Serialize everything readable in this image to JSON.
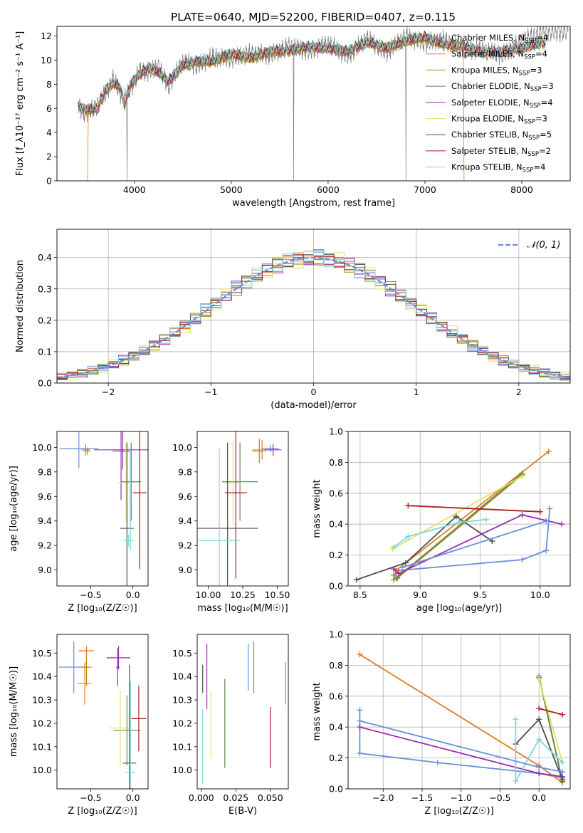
{
  "figure": {
    "title": "PLATE=0640, MJD=52200, FIBERID=0407, z=0.115"
  },
  "colors": {
    "models": [
      "#6A8DDB",
      "#E07B22",
      "#B8860B",
      "#5E8C54",
      "#9A2DB0",
      "#E2E26A",
      "#4D4D4D",
      "#AA1E1E",
      "#7ED6E0"
    ],
    "data": "#808080",
    "normal": "#6A8DDB",
    "grid": "#b0b0b0"
  },
  "chart_data": [
    {
      "id": "spectrum",
      "type": "line",
      "xlabel": "wavelength [Angstrom, rest frame]",
      "ylabel": "Flux [f_λ10⁻¹⁷ erg cm⁻² s⁻¹ A⁻¹]",
      "xlim": [
        3200,
        8500
      ],
      "ylim": [
        0,
        12.8
      ],
      "xticks": [
        4000,
        5000,
        6000,
        7000,
        8000
      ],
      "yticks": [
        0,
        2,
        4,
        6,
        8,
        10,
        12
      ],
      "grid": false,
      "legend_position": "top-right",
      "x": [
        3420,
        3480,
        3550,
        3620,
        3700,
        3780,
        3850,
        3900,
        3960,
        4050,
        4150,
        4250,
        4350,
        4500,
        4650,
        4800,
        5000,
        5200,
        5400,
        5600,
        5800,
        6000,
        6200,
        6400,
        6600,
        6800,
        7000,
        7200,
        7400,
        7600,
        7800,
        8000,
        8200
      ],
      "model_flux": [
        6.2,
        5.9,
        5.9,
        6.0,
        7.5,
        8.1,
        7.8,
        6.3,
        8.0,
        8.8,
        9.4,
        9.0,
        8.2,
        9.6,
        9.9,
        9.9,
        10.5,
        10.2,
        10.7,
        10.8,
        11.1,
        11.0,
        10.7,
        11.5,
        11.0,
        11.6,
        11.9,
        11.3,
        11.2,
        10.6,
        10.7,
        11.0,
        11.4
      ],
      "data_flux": [
        6.1,
        5.6,
        5.8,
        6.3,
        7.2,
        8.5,
        7.3,
        6.8,
        7.6,
        9.1,
        9.0,
        9.5,
        7.8,
        9.9,
        9.5,
        10.3,
        10.1,
        10.6,
        10.4,
        11.2,
        10.7,
        11.4,
        10.3,
        11.8,
        10.6,
        12.0,
        11.4,
        11.7,
        10.8,
        10.9,
        10.4,
        11.6,
        12.3
      ],
      "legend": [
        {
          "prefix": "Chabrier MILES, N",
          "sub": "SSP",
          "suffix": "=4"
        },
        {
          "prefix": "Salpeter MILES, N",
          "sub": "SSP",
          "suffix": "=4"
        },
        {
          "prefix": "Kroupa MILES, N",
          "sub": "SSP",
          "suffix": "=3"
        },
        {
          "prefix": "Chabrier ELODIE, N",
          "sub": "SSP",
          "suffix": "=3"
        },
        {
          "prefix": "Salpeter ELODIE, N",
          "sub": "SSP",
          "suffix": "=4"
        },
        {
          "prefix": "Kroupa ELODIE, N",
          "sub": "SSP",
          "suffix": "=3"
        },
        {
          "prefix": "Chabrier STELIB, N",
          "sub": "SSP",
          "suffix": "=5"
        },
        {
          "prefix": "Salpeter STELIB, N",
          "sub": "SSP",
          "suffix": "=2"
        },
        {
          "prefix": "Kroupa STELIB, N",
          "sub": "SSP",
          "suffix": "=4"
        }
      ]
    },
    {
      "id": "residuals",
      "type": "histogram",
      "xlabel": "(data-model)/error",
      "ylabel": "Normed distribution",
      "xlim": [
        -2.5,
        2.5
      ],
      "ylim": [
        0,
        0.49
      ],
      "xticks": [
        -2,
        -1,
        0,
        1,
        2
      ],
      "yticks": [
        0.0,
        0.1,
        0.2,
        0.3,
        0.4
      ],
      "grid": true,
      "legend_position": "top-right",
      "legend_label": "𝒩(0, 1)",
      "bin_width": 0.1,
      "bin_start": -2.5,
      "offsets": [
        0.0,
        0.012,
        -0.01,
        0.006,
        0.016,
        -0.014,
        0.009,
        -0.004,
        0.013
      ],
      "wiggle_amp": [
        0.028,
        0.022,
        0.03,
        0.025,
        0.033,
        0.036,
        0.024,
        0.02,
        0.031
      ]
    },
    {
      "id": "age-vs-Z",
      "type": "errorbar",
      "xlabel": "Z [log₁₀(Z/Z☉)]",
      "ylabel": "age  [log₁₀(age/yr)]",
      "xlim": [
        -0.9,
        0.18
      ],
      "ylim": [
        8.87,
        10.13
      ],
      "xticks": [
        -0.5,
        0.0
      ],
      "yticks": [
        9.0,
        9.2,
        9.4,
        9.6,
        9.8,
        10.0
      ],
      "grid": false,
      "points": [
        {
          "model": 0,
          "x": -0.64,
          "y": 9.99,
          "xerr": 0.23,
          "yerr": 0.16
        },
        {
          "model": 1,
          "x": -0.56,
          "y": 9.98,
          "xerr": 0.05,
          "yerr": 0.05
        },
        {
          "model": 2,
          "x": -0.54,
          "y": 9.97,
          "xerr": 0.04,
          "yerr": 0.03
        },
        {
          "model": 3,
          "x": -0.02,
          "y": 9.72,
          "xerr": 0.12,
          "yerr": 0.32
        },
        {
          "model": 4,
          "x": -0.12,
          "y": 9.98,
          "xerr": 0.34,
          "yerr": 0.16
        },
        {
          "model": 4,
          "x": -0.14,
          "y": 9.97,
          "xerr": 0.1,
          "yerr": 0.4
        },
        {
          "model": 5,
          "x": -0.08,
          "y": 9.71,
          "xerr": 0.1,
          "yerr": 0.32
        },
        {
          "model": 6,
          "x": -0.07,
          "y": 9.34,
          "xerr": 0.08,
          "yerr": 0.7
        },
        {
          "model": 7,
          "x": 0.08,
          "y": 9.63,
          "xerr": 0.08,
          "yerr": 0.62
        },
        {
          "model": 8,
          "x": -0.05,
          "y": 9.24,
          "xerr": 0.06,
          "yerr": 0.05
        },
        {
          "model": 8,
          "x": -0.03,
          "y": 9.58,
          "xerr": 0.02,
          "yerr": 0.42
        }
      ]
    },
    {
      "id": "age-vs-mass",
      "type": "errorbar",
      "xlabel": "mass [log₁₀(M/M☉)]",
      "ylabel": "",
      "xlim": [
        9.92,
        10.58
      ],
      "ylim": [
        8.87,
        10.13
      ],
      "xticks": [
        10.0,
        10.25,
        10.5
      ],
      "yticks": [
        9.0,
        9.2,
        9.4,
        9.6,
        9.8,
        10.0
      ],
      "grid": false,
      "points": [
        {
          "model": 0,
          "x": 10.45,
          "y": 9.99,
          "xerr": 0.06,
          "yerr": 0.03
        },
        {
          "model": 1,
          "x": 10.39,
          "y": 9.98,
          "xerr": 0.07,
          "yerr": 0.08
        },
        {
          "model": 2,
          "x": 10.37,
          "y": 9.97,
          "xerr": 0.05,
          "yerr": 0.1
        },
        {
          "model": 3,
          "x": 10.23,
          "y": 9.72,
          "xerr": 0.13,
          "yerr": 0.32
        },
        {
          "model": 4,
          "x": 10.47,
          "y": 9.98,
          "xerr": 0.06,
          "yerr": 0.05
        },
        {
          "model": 5,
          "x": 10.18,
          "y": 9.71,
          "xerr": 0.06,
          "yerr": 0.35
        },
        {
          "model": 6,
          "x": 10.14,
          "y": 9.34,
          "xerr": 0.22,
          "yerr": 0.7
        },
        {
          "model": 7,
          "x": 10.2,
          "y": 9.63,
          "xerr": 0.08,
          "yerr": 0.7
        },
        {
          "model": 8,
          "x": 10.08,
          "y": 9.24,
          "xerr": 0.15,
          "yerr": 0.75
        }
      ]
    },
    {
      "id": "massweight-vs-age",
      "type": "line",
      "xlabel": "age  [log₁₀(age/yr)]",
      "ylabel": "mass weight",
      "xlim": [
        8.4,
        10.25
      ],
      "ylim": [
        0.0,
        1.0
      ],
      "xticks": [
        8.5,
        9.0,
        9.5,
        10.0
      ],
      "yticks": [
        0.0,
        0.2,
        0.4,
        0.6,
        0.8,
        1.0
      ],
      "grid": true,
      "series": [
        {
          "model": 0,
          "x": [
            10.08,
            10.05,
            9.85,
            8.82,
            8.78
          ],
          "y": [
            0.5,
            0.23,
            0.17,
            0.1,
            0.07
          ]
        },
        {
          "model": 1,
          "x": [
            10.07,
            8.8,
            8.78
          ],
          "y": [
            0.87,
            0.1,
            0.04
          ]
        },
        {
          "model": 2,
          "x": [
            9.85,
            8.81
          ],
          "y": [
            0.72,
            0.05
          ]
        },
        {
          "model": 3,
          "x": [
            9.85,
            8.8
          ],
          "y": [
            0.73,
            0.05
          ]
        },
        {
          "model": 4,
          "x": [
            10.18,
            9.85,
            8.82,
            8.78
          ],
          "y": [
            0.4,
            0.46,
            0.08,
            0.11
          ]
        },
        {
          "model": 5,
          "x": [
            9.85,
            8.77
          ],
          "y": [
            0.71,
            0.24
          ]
        },
        {
          "model": 6,
          "x": [
            8.47,
            8.88,
            9.3,
            9.6
          ],
          "y": [
            0.04,
            0.15,
            0.45,
            0.29
          ]
        },
        {
          "model": 7,
          "x": [
            8.9,
            10.0
          ],
          "y": [
            0.52,
            0.48
          ]
        },
        {
          "model": 8,
          "x": [
            8.78,
            8.9,
            9.32,
            9.55
          ],
          "y": [
            0.25,
            0.32,
            0.41,
            0.43
          ]
        },
        {
          "model": 0,
          "x": [
            10.05,
            8.85
          ],
          "y": [
            0.42,
            0.12
          ]
        }
      ]
    },
    {
      "id": "mass-vs-Z",
      "type": "errorbar",
      "xlabel": "Z [log₁₀(Z/Z☉)]",
      "ylabel": "mass [log₁₀(M/M☉)]",
      "xlim": [
        -0.9,
        0.18
      ],
      "ylim": [
        9.92,
        10.58
      ],
      "xticks": [
        -0.5,
        0.0
      ],
      "yticks": [
        10.0,
        10.1,
        10.2,
        10.3,
        10.4,
        10.5
      ],
      "grid": false,
      "points": [
        {
          "model": 0,
          "x": -0.7,
          "y": 10.44,
          "xerr": 0.18,
          "yerr": 0.11
        },
        {
          "model": 1,
          "x": -0.57,
          "y": 10.37,
          "xerr": 0.08,
          "yerr": 0.09
        },
        {
          "model": 2,
          "x": -0.55,
          "y": 10.44,
          "xerr": 0.06,
          "yerr": 0.08
        },
        {
          "model": 3,
          "x": -0.07,
          "y": 10.17,
          "xerr": 0.16,
          "yerr": 0.15
        },
        {
          "model": 4,
          "x": -0.17,
          "y": 10.48,
          "xerr": 0.14,
          "yerr": 0.05
        },
        {
          "model": 4,
          "x": -0.18,
          "y": 10.44,
          "xerr": 0.02,
          "yerr": 0.08
        },
        {
          "model": 5,
          "x": -0.15,
          "y": 10.18,
          "xerr": 0.13,
          "yerr": 0.16
        },
        {
          "model": 6,
          "x": -0.04,
          "y": 10.03,
          "xerr": 0.08,
          "yerr": 0.42
        },
        {
          "model": 7,
          "x": 0.07,
          "y": 10.22,
          "xerr": 0.09,
          "yerr": 0.14
        },
        {
          "model": 8,
          "x": -0.03,
          "y": 9.99,
          "xerr": 0.06,
          "yerr": 0.39
        },
        {
          "model": 1,
          "x": -0.55,
          "y": 10.51,
          "xerr": 0.09,
          "yerr": 0.02
        }
      ]
    },
    {
      "id": "mass-vs-EBV",
      "type": "errorbar",
      "xlabel": "E(B-V)",
      "ylabel": "",
      "xlim": [
        -0.003,
        0.063
      ],
      "ylim": [
        9.92,
        10.58
      ],
      "xticks": [
        0.0,
        0.025,
        0.05
      ],
      "yticks": [
        10.0,
        10.1,
        10.2,
        10.3,
        10.4,
        10.5
      ],
      "grid": false,
      "points": [
        {
          "model": 0,
          "x": 0.034,
          "y": 10.44,
          "xerr": 0.0,
          "yerr": 0.1
        },
        {
          "model": 1,
          "x": 0.061,
          "y": 10.37,
          "xerr": 0.0,
          "yerr": 0.09
        },
        {
          "model": 3,
          "x": 0.017,
          "y": 10.2,
          "xerr": 0.0,
          "yerr": 0.19
        },
        {
          "model": 4,
          "x": 0.004,
          "y": 10.4,
          "xerr": 0.0,
          "yerr": 0.14
        },
        {
          "model": 5,
          "x": 0.007,
          "y": 10.19,
          "xerr": 0.0,
          "yerr": 0.14
        },
        {
          "model": 6,
          "x": 0.001,
          "y": 10.39,
          "xerr": 0.0,
          "yerr": 0.06
        },
        {
          "model": 7,
          "x": 0.05,
          "y": 10.14,
          "xerr": 0.0,
          "yerr": 0.13
        },
        {
          "model": 8,
          "x": 0.001,
          "y": 10.1,
          "xerr": 0.0,
          "yerr": 0.16
        },
        {
          "model": 2,
          "x": 0.038,
          "y": 10.44,
          "xerr": 0.0,
          "yerr": 0.11
        }
      ]
    },
    {
      "id": "massweight-vs-Z",
      "type": "line",
      "xlabel": "Z [log₁₀(Z/Z☉)]",
      "ylabel": "mass weight",
      "xlim": [
        -2.45,
        0.4
      ],
      "ylim": [
        0.0,
        1.0
      ],
      "xticks": [
        -2.0,
        -1.5,
        -1.0,
        -0.5,
        0.0
      ],
      "yticks": [
        0.0,
        0.2,
        0.4,
        0.6,
        0.8,
        1.0
      ],
      "grid": true,
      "series": [
        {
          "model": 0,
          "x": [
            -2.3,
            -2.3,
            -1.3,
            0.0,
            0.3
          ],
          "y": [
            0.51,
            0.23,
            0.17,
            0.1,
            0.07
          ]
        },
        {
          "model": 1,
          "x": [
            -2.3,
            0.0,
            0.3
          ],
          "y": [
            0.87,
            0.15,
            0.04
          ]
        },
        {
          "model": 2,
          "x": [
            0.0,
            0.3
          ],
          "y": [
            0.72,
            0.05
          ]
        },
        {
          "model": 3,
          "x": [
            0.0,
            0.3
          ],
          "y": [
            0.73,
            0.05
          ]
        },
        {
          "model": 4,
          "x": [
            -2.3,
            0.0,
            0.3
          ],
          "y": [
            0.4,
            0.1,
            0.08
          ]
        },
        {
          "model": 5,
          "x": [
            0.0,
            0.3
          ],
          "y": [
            0.71,
            0.17
          ]
        },
        {
          "model": 6,
          "x": [
            -0.3,
            0.0,
            0.3
          ],
          "y": [
            0.29,
            0.45,
            0.06
          ]
        },
        {
          "model": 7,
          "x": [
            0.0,
            0.3
          ],
          "y": [
            0.52,
            0.48
          ]
        },
        {
          "model": 8,
          "x": [
            -0.3,
            -0.3,
            0.0,
            0.3
          ],
          "y": [
            0.45,
            0.05,
            0.32,
            0.17
          ]
        },
        {
          "model": 0,
          "x": [
            -2.3,
            0.0,
            0.3
          ],
          "y": [
            0.44,
            0.14,
            0.11
          ]
        }
      ]
    }
  ]
}
